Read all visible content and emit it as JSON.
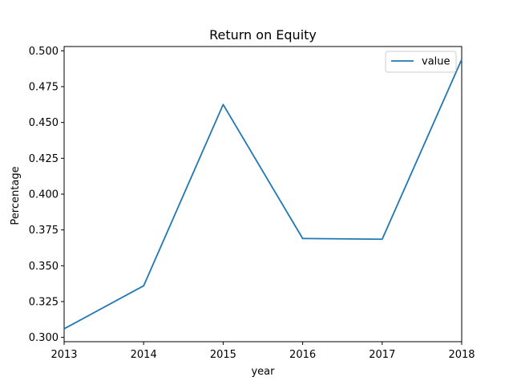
{
  "chart_data": {
    "type": "line",
    "title": "Return on Equity",
    "xlabel": "year",
    "ylabel": "Percentage",
    "x": [
      2013,
      2014,
      2015,
      2016,
      2017,
      2018
    ],
    "xlim": [
      2013,
      2018
    ],
    "ylim": [
      0.297,
      0.503
    ],
    "yticks": [
      "0.300",
      "0.325",
      "0.350",
      "0.375",
      "0.400",
      "0.425",
      "0.450",
      "0.475",
      "0.500"
    ],
    "xticks": [
      "2013",
      "2014",
      "2015",
      "2016",
      "2017",
      "2018"
    ],
    "series": [
      {
        "name": "value",
        "color": "#1f77b4",
        "values": [
          0.306,
          0.336,
          0.4625,
          0.369,
          0.3685,
          0.494
        ]
      }
    ],
    "grid": false,
    "legend": "top-right"
  }
}
